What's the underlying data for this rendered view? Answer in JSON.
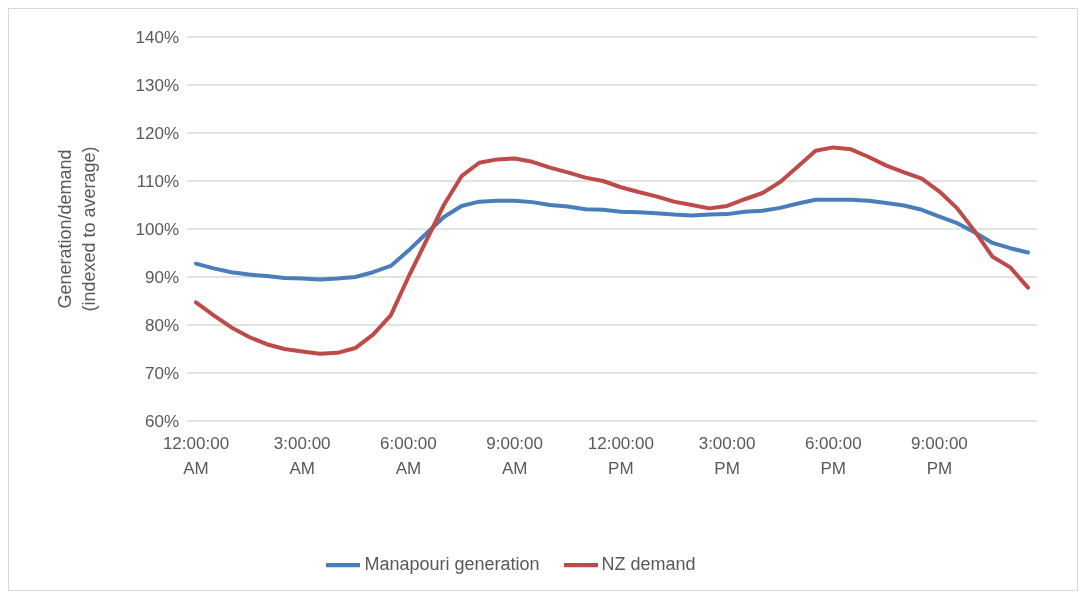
{
  "chart_data": {
    "type": "line",
    "ylabel": "Generation/demand (indexed to average)",
    "categories": [
      "12:00:00 AM",
      null,
      null,
      null,
      null,
      null,
      "3:00:00 AM",
      null,
      null,
      null,
      null,
      null,
      "6:00:00 AM",
      null,
      null,
      null,
      null,
      null,
      "9:00:00 AM",
      null,
      null,
      null,
      null,
      null,
      "12:00:00 PM",
      null,
      null,
      null,
      null,
      null,
      "3:00:00 PM",
      null,
      null,
      null,
      null,
      null,
      "6:00:00 PM",
      null,
      null,
      null,
      null,
      null,
      "9:00:00 PM",
      null,
      null,
      null,
      null,
      null
    ],
    "series": [
      {
        "name": "Manapouri generation",
        "color": "#4a7ebb",
        "values": [
          92.8,
          91.8,
          91,
          90.5,
          90.2,
          89.8,
          89.7,
          89.5,
          89.7,
          90,
          91,
          92.3,
          95.5,
          99,
          102.5,
          104.8,
          105.7,
          105.9,
          105.9,
          105.6,
          105,
          104.7,
          104.1,
          104,
          103.6,
          103.5,
          103.3,
          103,
          102.8,
          103,
          103.1,
          103.6,
          103.8,
          104.4,
          105.3,
          106.1,
          106.1,
          106.1,
          105.9,
          105.4,
          104.9,
          104,
          102.6,
          101.2,
          99.3,
          97.1,
          96,
          95.1
        ]
      },
      {
        "name": "NZ demand",
        "color": "#be4b48",
        "values": [
          84.7,
          82,
          79.5,
          77.5,
          76,
          75,
          74.5,
          74,
          74.2,
          75.2,
          78,
          82,
          90,
          97.5,
          105,
          111,
          113.8,
          114.5,
          114.7,
          114,
          112.8,
          111.8,
          110.7,
          110,
          108.7,
          107.7,
          106.8,
          105.7,
          105,
          104.3,
          104.8,
          106.2,
          107.5,
          109.8,
          113,
          116.3,
          117,
          116.6,
          115,
          113.2,
          111.8,
          110.5,
          107.8,
          104.3,
          99.5,
          94.2,
          92,
          87.8
        ]
      }
    ],
    "ylim": [
      60,
      140
    ],
    "yticks": [
      {
        "value": 60,
        "label": "60%"
      },
      {
        "value": 70,
        "label": "70%"
      },
      {
        "value": 80,
        "label": "80%"
      },
      {
        "value": 90,
        "label": "90%"
      },
      {
        "value": 100,
        "label": "100%"
      },
      {
        "value": 110,
        "label": "110%"
      },
      {
        "value": 120,
        "label": "120%"
      },
      {
        "value": 130,
        "label": "130%"
      },
      {
        "value": 140,
        "label": "140%"
      }
    ],
    "grid": "y",
    "legend": "bottom",
    "marker": "none",
    "line_style": "solid"
  }
}
